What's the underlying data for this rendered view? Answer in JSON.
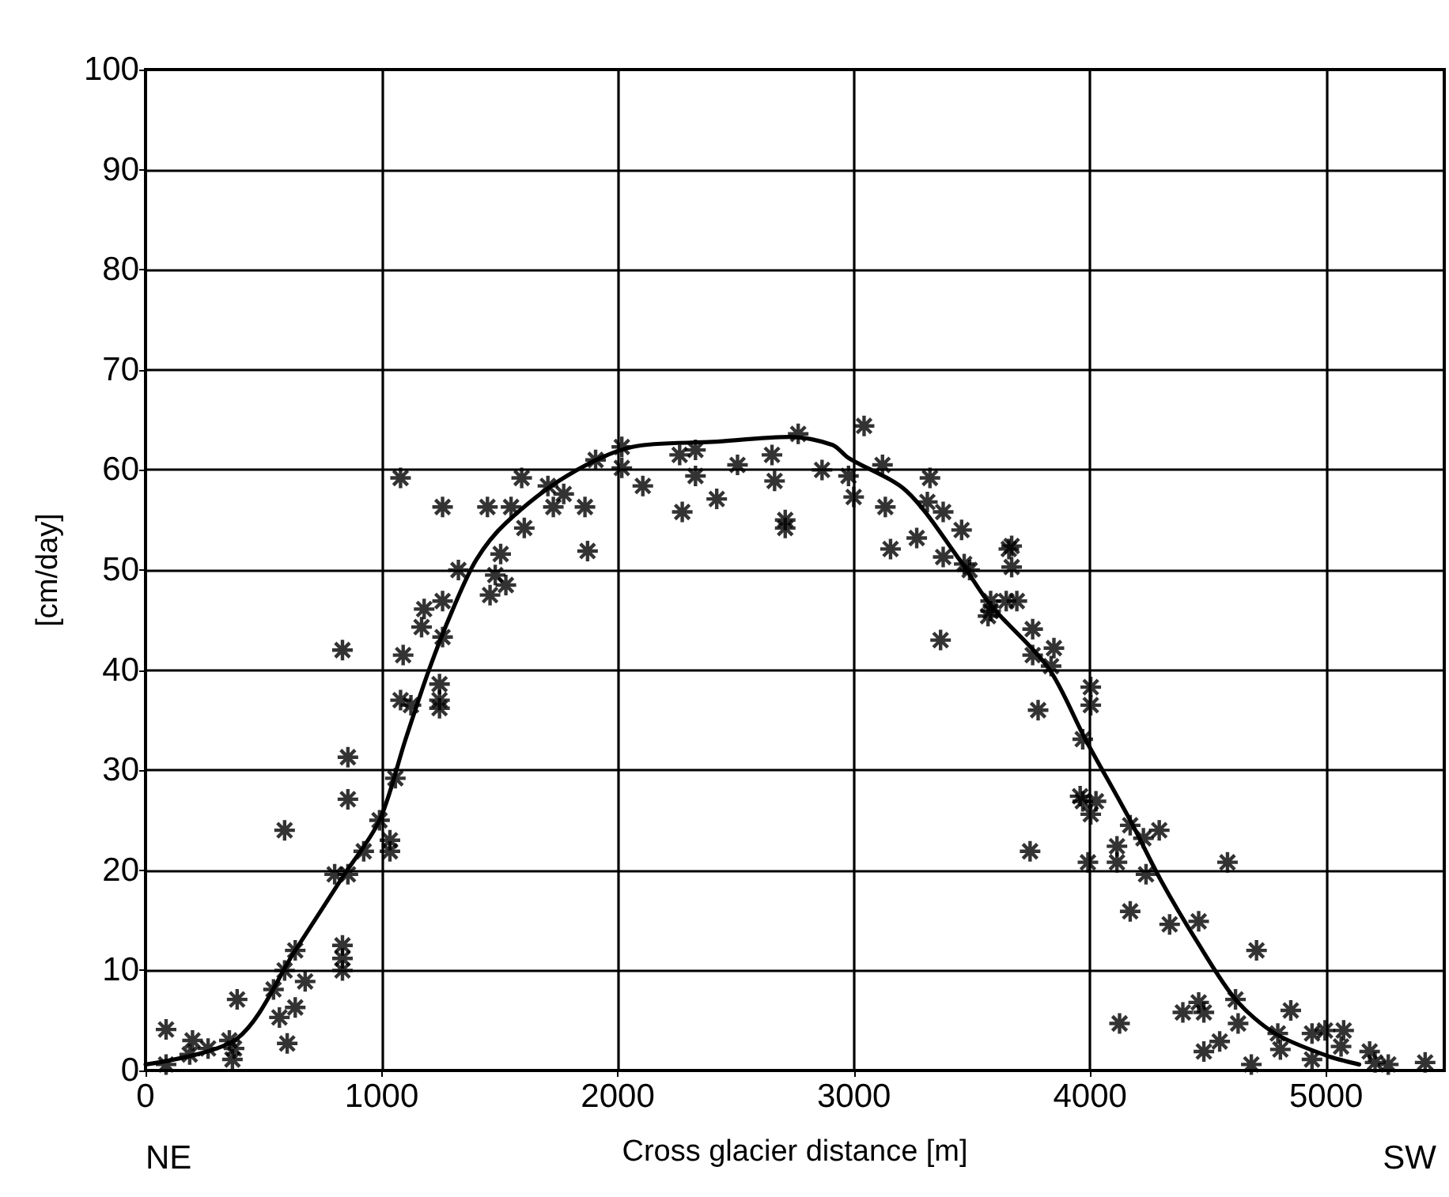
{
  "chart_data": {
    "type": "scatter",
    "xlabel": "Cross glacier distance [m]",
    "ylabel": "[cm/day]",
    "annotations": [
      "NE",
      "SW"
    ],
    "xlim": [
      0,
      5500
    ],
    "xticks": [
      0,
      1000,
      2000,
      3000,
      4000,
      5000
    ],
    "ylim": [
      0,
      100
    ],
    "yticks": [
      0,
      10,
      20,
      30,
      40,
      50,
      60,
      70,
      80,
      90,
      100
    ],
    "grid": true,
    "marker": "cross",
    "series": [
      {
        "color": "#000000",
        "x": [
          87,
          87,
          199,
          265,
          187,
          355,
          375,
          368,
          388,
          542,
          589,
          589,
          634,
          567,
          600,
          634,
          676,
          834,
          834,
          834,
          801,
          857,
          857,
          857,
          924,
          991,
          1035,
          1035,
          1058,
          1124,
          1245,
          834,
          1091,
          1080,
          1258,
          1080,
          1245,
          1245,
          1169,
          1180,
          1258,
          1325,
          1258,
          1459,
          1504,
          1481,
          1526,
          1448,
          1548,
          1604,
          1593,
          1704,
          1727,
          1771,
          1861,
          1872,
          1906,
          2017,
          2017,
          2106,
          2262,
          2273,
          2329,
          2329,
          2419,
          2507,
          2653,
          2664,
          2709,
          2709,
          2764,
          2865,
          2977,
          2999,
          3043,
          3121,
          3133,
          3155,
          3266,
          3322,
          3311,
          3378,
          3378,
          3456,
          3490,
          3579,
          3367,
          3656,
          3645,
          3467,
          3668,
          3668,
          3579,
          3568,
          3690,
          3757,
          3757,
          3847,
          3835,
          3780,
          4003,
          4003,
          3969,
          3958,
          4025,
          4003,
          3969,
          3746,
          3991,
          4114,
          4114,
          4170,
          4226,
          4293,
          4237,
          4582,
          4170,
          4337,
          4460,
          4705,
          4125,
          4393,
          4460,
          4482,
          4482,
          4549,
          4616,
          4627,
          4683,
          4795,
          4806,
          4850,
          4940,
          4940,
          4995,
          5074,
          5063,
          5184,
          5207,
          5263,
          5419
        ],
        "values": [
          4.1,
          0.6,
          3.0,
          2.2,
          1.6,
          3.0,
          2.2,
          1.1,
          7.1,
          8.1,
          24,
          10.0,
          12.0,
          5.3,
          2.7,
          6.3,
          8.9,
          12.5,
          11.2,
          10.0,
          19.6,
          19.6,
          31.3,
          27.1,
          21.9,
          25.0,
          21.9,
          23,
          29.2,
          36.5,
          36.2,
          42.0,
          41.5,
          59.2,
          56.3,
          37,
          38.6,
          37,
          44.3,
          46.1,
          46.9,
          50.0,
          43.3,
          47.5,
          51.6,
          49.5,
          48.5,
          56.3,
          56.3,
          54.2,
          59.2,
          58.4,
          56.3,
          57.6,
          56.3,
          51.9,
          61.0,
          62.3,
          60.2,
          58.4,
          61.5,
          55.8,
          62.0,
          59.4,
          57.1,
          60.5,
          61.5,
          58.9,
          55.0,
          54.2,
          63.6,
          60.0,
          59.4,
          57.3,
          64.4,
          60.5,
          56.3,
          52.1,
          53.2,
          59.2,
          56.8,
          55.8,
          51.3,
          54.0,
          50.0,
          45.9,
          43.0,
          52.1,
          46.9,
          50.6,
          52.4,
          50.3,
          46.9,
          45.4,
          46.9,
          44.1,
          41.5,
          42.2,
          40.4,
          36.0,
          38.3,
          36.5,
          33.1,
          27.4,
          26.9,
          25.6,
          26.9,
          21.9,
          20.8,
          22.4,
          20.8,
          24.5,
          23.2,
          24.0,
          19.6,
          20.8,
          15.9,
          14.6,
          14.9,
          12.0,
          4.7,
          5.8,
          6.8,
          5.8,
          1.9,
          2.9,
          7.1,
          4.7,
          0.6,
          3.7,
          2.1,
          6.0,
          3.7,
          1.1,
          4.0,
          4.0,
          2.4,
          1.9,
          0.8,
          0.6,
          0.8
        ]
      },
      {
        "type": "line",
        "color": "#000000",
        "marker": "none",
        "line_style": "solid",
        "x": [
          0,
          388,
          634,
          834,
          991,
          1100,
          1200,
          1300,
          1400,
          1526,
          1784,
          2062,
          2400,
          2731,
          2909,
          2977,
          3222,
          3445,
          3579,
          3824,
          3980,
          4170,
          4300,
          4450,
          4616,
          4783,
          5000,
          5140
        ],
        "values": [
          0.6,
          3.2,
          12,
          19.3,
          25,
          33,
          40,
          46,
          51,
          54.7,
          59.4,
          62.3,
          62.8,
          63.3,
          62.5,
          61.2,
          57.9,
          51.1,
          46.5,
          40.2,
          33.1,
          25,
          19,
          13,
          7.1,
          3.7,
          1.5,
          0.6
        ]
      }
    ]
  }
}
